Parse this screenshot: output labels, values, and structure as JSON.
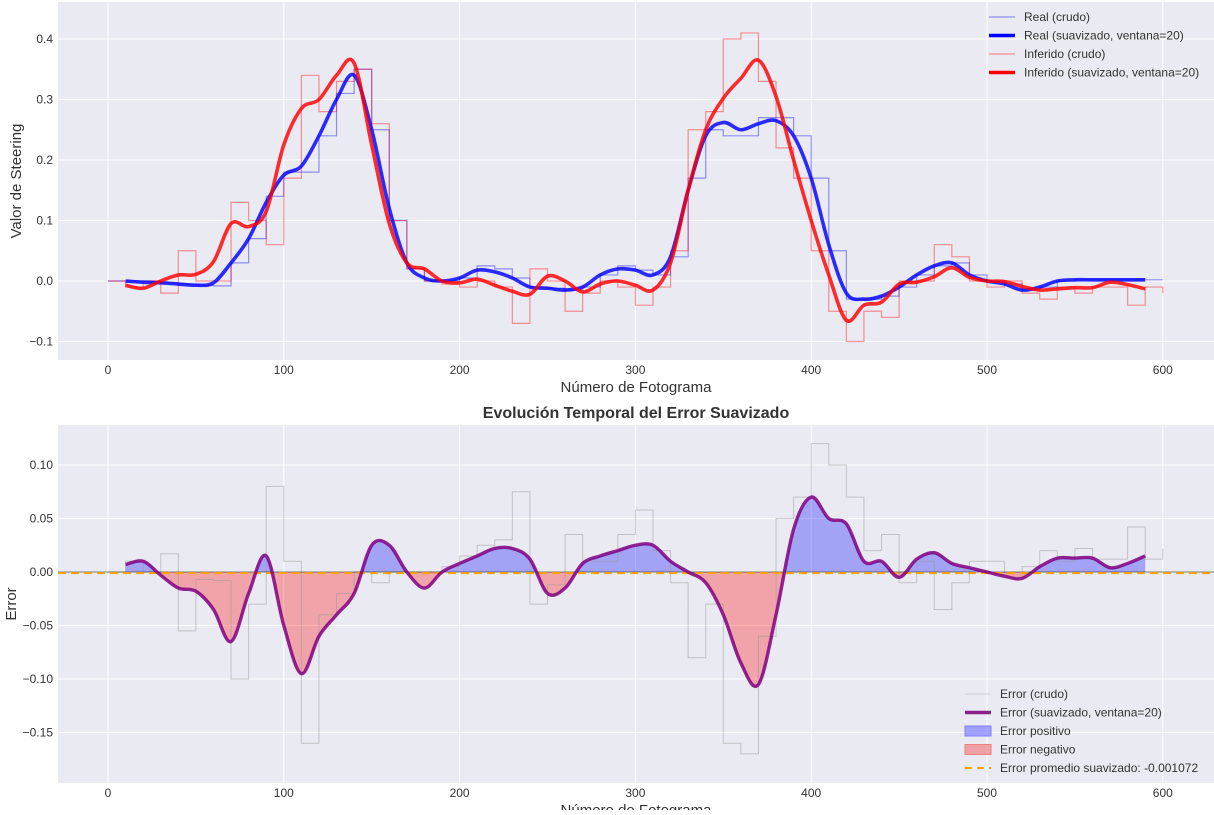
{
  "chart_data": [
    {
      "type": "line",
      "title": "",
      "xlabel": "Número de Fotograma",
      "ylabel": "Valor de Steering",
      "xlim": [
        -28,
        625
      ],
      "ylim": [
        -0.13,
        0.455
      ],
      "xticks": [
        0,
        100,
        200,
        300,
        400,
        500,
        600
      ],
      "yticks": [
        -0.1,
        0.0,
        0.1,
        0.2,
        0.3,
        0.4
      ],
      "ytick_labels": [
        "−0.1",
        "0.0",
        "0.1",
        "0.2",
        "0.3",
        "0.4"
      ],
      "grid": true,
      "legend_position": "top-right",
      "raw_x": [
        0,
        10,
        20,
        30,
        40,
        50,
        60,
        70,
        80,
        90,
        100,
        110,
        120,
        130,
        140,
        150,
        160,
        170,
        180,
        190,
        200,
        210,
        220,
        230,
        240,
        250,
        260,
        270,
        280,
        290,
        300,
        310,
        320,
        330,
        340,
        350,
        360,
        370,
        380,
        390,
        400,
        410,
        420,
        430,
        440,
        450,
        460,
        470,
        480,
        490,
        500,
        510,
        520,
        530,
        540,
        550,
        560,
        570,
        580,
        590,
        600
      ],
      "smooth_x": [
        10,
        20,
        30,
        40,
        50,
        60,
        70,
        80,
        90,
        100,
        110,
        120,
        130,
        140,
        150,
        160,
        170,
        180,
        190,
        200,
        210,
        220,
        230,
        240,
        250,
        260,
        270,
        280,
        290,
        300,
        310,
        320,
        330,
        340,
        350,
        360,
        370,
        380,
        390,
        400,
        410,
        420,
        430,
        440,
        450,
        460,
        470,
        480,
        490,
        500,
        510,
        520,
        530,
        540,
        550,
        560,
        570,
        580,
        590
      ],
      "series": [
        {
          "name": "Real (crudo)",
          "color": "#0000ff",
          "style": "thin-step",
          "values": [
            0,
            0,
            0,
            -0.003,
            -0.005,
            -0.007,
            -0.008,
            0.03,
            0.07,
            0.14,
            0.18,
            0.18,
            0.24,
            0.31,
            0.35,
            0.25,
            0.1,
            0.02,
            0.0,
            0.0,
            0.005,
            0.025,
            0.02,
            0.005,
            -0.01,
            -0.012,
            -0.015,
            -0.01,
            0.01,
            0.025,
            0.018,
            0.01,
            0.04,
            0.17,
            0.25,
            0.24,
            0.24,
            0.27,
            0.27,
            0.24,
            0.17,
            0.05,
            -0.03,
            -0.03,
            -0.025,
            -0.01,
            0.01,
            0.025,
            0.03,
            0.01,
            0,
            -0.005,
            -0.015,
            -0.01,
            0,
            0.002,
            0.002,
            0.002,
            0.002,
            0.002,
            0.002
          ]
        },
        {
          "name": "Real (suavizado, ventana=20)",
          "color": "#0000ff",
          "style": "thick",
          "values": [
            0,
            -0.002,
            -0.003,
            -0.005,
            -0.007,
            -0.003,
            0.03,
            0.07,
            0.13,
            0.175,
            0.19,
            0.24,
            0.3,
            0.34,
            0.25,
            0.12,
            0.03,
            0.005,
            0,
            0.005,
            0.018,
            0.015,
            0.005,
            -0.01,
            -0.012,
            -0.015,
            -0.01,
            0.01,
            0.02,
            0.018,
            0.01,
            0.04,
            0.15,
            0.24,
            0.262,
            0.25,
            0.26,
            0.265,
            0.24,
            0.17,
            0.06,
            -0.02,
            -0.03,
            -0.025,
            -0.01,
            0.01,
            0.025,
            0.03,
            0.01,
            0,
            -0.005,
            -0.015,
            -0.01,
            0,
            0.002,
            0.002,
            0.002,
            0.002,
            0.002
          ]
        },
        {
          "name": "Inferido (crudo)",
          "color": "#ff0000",
          "style": "thin-step",
          "values": [
            0,
            -0.01,
            0,
            -0.02,
            0.05,
            0,
            0,
            0.13,
            0.1,
            0.06,
            0.17,
            0.34,
            0.28,
            0.33,
            0.35,
            0.26,
            0.1,
            0.02,
            0,
            -0.005,
            -0.01,
            0,
            -0.01,
            -0.07,
            0.02,
            0,
            -0.05,
            -0.02,
            0,
            -0.01,
            -0.04,
            -0.01,
            0.05,
            0.25,
            0.28,
            0.4,
            0.41,
            0.33,
            0.22,
            0.17,
            0.05,
            -0.05,
            -0.1,
            -0.05,
            -0.06,
            0,
            0,
            0.06,
            0.04,
            0,
            -0.01,
            0,
            -0.02,
            -0.03,
            -0.01,
            -0.02,
            -0.01,
            -0.01,
            -0.04,
            -0.01,
            -0.02
          ]
        },
        {
          "name": "Inferido (suavizado, ventana=20)",
          "color": "#ff0000",
          "style": "thick",
          "values": [
            -0.007,
            -0.012,
            0,
            0.01,
            0.011,
            0.032,
            0.095,
            0.09,
            0.115,
            0.225,
            0.285,
            0.3,
            0.34,
            0.36,
            0.225,
            0.095,
            0.03,
            0.02,
            0,
            -0.003,
            0.003,
            -0.007,
            -0.017,
            -0.022,
            0.008,
            0,
            -0.018,
            -0.005,
            0,
            -0.007,
            -0.015,
            0.03,
            0.15,
            0.25,
            0.302,
            0.335,
            0.365,
            0.305,
            0.2,
            0.1,
            0.01,
            -0.065,
            -0.04,
            -0.035,
            -0.005,
            -0.002,
            0.007,
            0.022,
            0.006,
            0,
            -0.001,
            -0.009,
            -0.015,
            -0.013,
            -0.011,
            -0.011,
            -0.002,
            -0.006,
            -0.013
          ]
        }
      ]
    },
    {
      "type": "line",
      "title": "Evolución Temporal del Error Suavizado",
      "xlabel": "Número de Fotograma",
      "ylabel": "Error",
      "xlim": [
        -28,
        625
      ],
      "ylim": [
        -0.19,
        0.13
      ],
      "xticks": [
        0,
        100,
        200,
        300,
        400,
        500,
        600
      ],
      "yticks": [
        -0.15,
        -0.1,
        -0.05,
        0.0,
        0.05,
        0.1
      ],
      "ytick_labels": [
        "−0.15",
        "−0.10",
        "−0.05",
        "0.00",
        "0.05",
        "0.10"
      ],
      "grid": true,
      "legend_position": "bottom-right",
      "legend": [
        {
          "name": "Error (crudo)",
          "color": "#bbbbbb",
          "kind": "line"
        },
        {
          "name": "Error (suavizado, ventana=20)",
          "color": "#882288",
          "kind": "thick"
        },
        {
          "name": "Error positivo",
          "color": "#8080ff",
          "kind": "patch"
        },
        {
          "name": "Error negativo",
          "color": "#f08080",
          "kind": "patch"
        },
        {
          "name": "Error promedio suavizado: -0.001072",
          "color": "#ffa500",
          "kind": "dashed"
        }
      ],
      "mean_error": -0.001072,
      "smooth_error_values": [
        0.007,
        0.01,
        -0.003,
        -0.015,
        -0.018,
        -0.035,
        -0.065,
        -0.02,
        0.015,
        -0.05,
        -0.095,
        -0.06,
        -0.04,
        -0.02,
        0.025,
        0.025,
        0,
        -0.015,
        0,
        0.008,
        0.015,
        0.022,
        0.022,
        0.012,
        -0.02,
        -0.015,
        0.008,
        0.015,
        0.02,
        0.025,
        0.025,
        0.01,
        0,
        -0.01,
        -0.04,
        -0.085,
        -0.105,
        -0.04,
        0.04,
        0.07,
        0.05,
        0.045,
        0.01,
        0.01,
        -0.005,
        0.012,
        0.018,
        0.008,
        0.004,
        0,
        -0.004,
        -0.006,
        0.005,
        0.013,
        0.013,
        0.013,
        0.004,
        0.008,
        0.015
      ]
    }
  ]
}
